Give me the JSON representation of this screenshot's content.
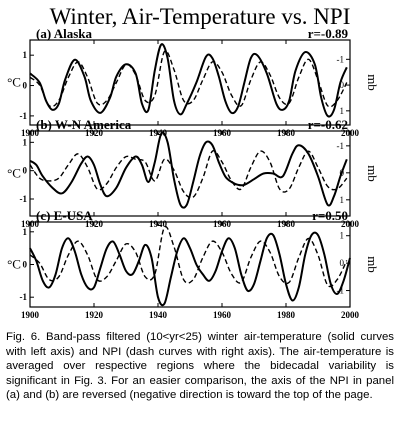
{
  "figure": {
    "title": "Winter, Air-Temperature vs. NPI",
    "caption": "Fig. 6. Band-pass filtered (10<yr<25) winter air-temperature (solid curves with left axis) and NPI (dash curves with right axis). The air-temperature is averaged over respective regions where the bidecadal variability is significant in Fig. 3. For an easier comparison, the axis of the NPI in panel (a) and (b) are reversed (negative direction is toward the top of the page."
  },
  "chart_data": [
    {
      "type": "line",
      "panel_label": "(a) Alaska",
      "r_label": "r=-0.89",
      "ylabel_left": "°C",
      "ylabel_right": "mb",
      "xlim": [
        1900,
        2000
      ],
      "ylim_left": [
        -1.3,
        1.5
      ],
      "ylim_right": [
        -1.75,
        1.55
      ],
      "right_axis_reversed": true,
      "x_ticks": [
        1900,
        1920,
        1940,
        1960,
        1980,
        2000
      ],
      "left_ticks": [
        {
          "value": 1,
          "label": "1"
        },
        {
          "value": 0,
          "label": "0"
        },
        {
          "value": -1,
          "label": "-1"
        }
      ],
      "right_ticks": [
        {
          "value": -1,
          "label": "-1"
        },
        {
          "value": 0,
          "label": "0"
        },
        {
          "value": 1,
          "label": "1"
        }
      ],
      "series": [
        {
          "role": "air-temperature",
          "style": "solid",
          "axis": "left",
          "x": [
            1900,
            1903,
            1905,
            1907,
            1909,
            1911,
            1914,
            1917,
            1919,
            1922,
            1925,
            1927,
            1930,
            1933,
            1935,
            1937,
            1939,
            1941,
            1943,
            1945,
            1947,
            1949,
            1952,
            1955,
            1957,
            1959,
            1961,
            1963,
            1965,
            1967,
            1969,
            1971,
            1974,
            1977,
            1979,
            1981,
            1983,
            1986,
            1989,
            1991,
            1993,
            1995,
            1997,
            1999
          ],
          "values": [
            0.4,
            0.1,
            -0.5,
            -0.8,
            -0.6,
            0.2,
            0.85,
            0.3,
            -0.5,
            -0.9,
            -0.4,
            0.3,
            0.7,
            0.4,
            -0.6,
            -0.8,
            0.5,
            1.35,
            0.9,
            -0.5,
            -0.95,
            -0.6,
            0.1,
            0.95,
            0.9,
            0.3,
            -0.5,
            -0.9,
            -0.7,
            0.1,
            0.9,
            1.0,
            0.4,
            -0.6,
            -0.8,
            -0.5,
            0.5,
            1.1,
            0.7,
            -0.4,
            -1.0,
            -0.8,
            0.1,
            0.6
          ]
        },
        {
          "role": "NPI",
          "style": "dashed",
          "axis": "right",
          "x": [
            1900,
            1903,
            1906,
            1909,
            1912,
            1915,
            1918,
            1921,
            1924,
            1927,
            1930,
            1933,
            1936,
            1939,
            1942,
            1945,
            1948,
            1951,
            1954,
            1957,
            1960,
            1963,
            1966,
            1969,
            1972,
            1975,
            1978,
            1981,
            1984,
            1987,
            1990,
            1993,
            1996,
            1999
          ],
          "values": [
            -0.3,
            0.0,
            0.8,
            0.6,
            -0.3,
            -0.9,
            -0.3,
            0.7,
            0.6,
            -0.1,
            -0.8,
            -0.4,
            0.6,
            0.4,
            -1.3,
            -0.6,
            0.6,
            0.6,
            -0.2,
            -0.9,
            -0.5,
            0.4,
            0.8,
            -0.2,
            -0.9,
            -0.4,
            0.5,
            0.7,
            -0.3,
            -1.0,
            -0.2,
            0.8,
            0.6,
            -0.1
          ]
        }
      ]
    },
    {
      "type": "line",
      "panel_label": "(b) W-N America",
      "r_label": "r=-0.62",
      "ylabel_left": "°C",
      "ylabel_right": "mb",
      "xlim": [
        1900,
        2000
      ],
      "ylim_left": [
        -1.6,
        1.4
      ],
      "ylim_right": [
        -1.55,
        1.6
      ],
      "right_axis_reversed": true,
      "x_ticks": [
        1900,
        1920,
        1940,
        1960,
        1980,
        2000
      ],
      "left_ticks": [
        {
          "value": 1,
          "label": "1"
        },
        {
          "value": 0,
          "label": "0"
        },
        {
          "value": -1,
          "label": "-1"
        }
      ],
      "right_ticks": [
        {
          "value": -1,
          "label": "-1"
        },
        {
          "value": 0,
          "label": "0"
        },
        {
          "value": 1,
          "label": "1"
        }
      ],
      "series": [
        {
          "role": "air-temperature",
          "style": "solid",
          "axis": "left",
          "x": [
            1900,
            1902,
            1904,
            1907,
            1910,
            1913,
            1916,
            1918,
            1920,
            1922,
            1924,
            1927,
            1930,
            1933,
            1935,
            1937,
            1939,
            1941,
            1943,
            1945,
            1947,
            1949,
            1951,
            1953,
            1955,
            1957,
            1959,
            1961,
            1963,
            1965,
            1967,
            1970,
            1973,
            1976,
            1979,
            1982,
            1984,
            1987,
            1990,
            1993,
            1995,
            1997,
            1999
          ],
          "values": [
            0.35,
            0.2,
            -0.2,
            -0.6,
            -0.8,
            -0.4,
            0.25,
            0.5,
            0.2,
            -0.5,
            -0.9,
            -0.6,
            0.1,
            0.5,
            0.2,
            -0.4,
            0.3,
            1.3,
            1.0,
            -0.3,
            -1.2,
            -1.2,
            -0.4,
            0.5,
            1.0,
            0.9,
            0.3,
            -0.2,
            -0.4,
            -0.5,
            -0.5,
            -0.3,
            -0.1,
            -0.1,
            -0.2,
            0.6,
            0.9,
            0.6,
            -0.2,
            -1.2,
            -0.9,
            -0.2,
            0.4
          ]
        },
        {
          "role": "NPI",
          "style": "dashed",
          "axis": "right",
          "x": [
            1900,
            1903,
            1906,
            1909,
            1912,
            1915,
            1918,
            1921,
            1924,
            1927,
            1930,
            1933,
            1936,
            1939,
            1942,
            1945,
            1948,
            1951,
            1954,
            1957,
            1960,
            1963,
            1966,
            1969,
            1972,
            1975,
            1978,
            1981,
            1984,
            1987,
            1990,
            1993,
            1996,
            1999
          ],
          "values": [
            -0.3,
            0.2,
            0.3,
            0.2,
            -0.3,
            -0.7,
            -0.2,
            0.6,
            0.4,
            -0.2,
            -0.6,
            -0.5,
            -0.4,
            0.3,
            -0.5,
            -0.1,
            0.7,
            0.9,
            0.2,
            -0.8,
            -0.4,
            0.3,
            0.6,
            -0.2,
            -0.8,
            -0.4,
            0.6,
            0.6,
            -0.2,
            -0.8,
            -0.2,
            0.5,
            0.6,
            0.2
          ]
        }
      ]
    },
    {
      "type": "line",
      "panel_label": "(c) E-USA",
      "r_label": "r=0.50",
      "ylabel_left": "°C",
      "ylabel_right": "mb",
      "xlim": [
        1900,
        2000
      ],
      "ylim_left": [
        -1.3,
        1.3
      ],
      "ylim_right": [
        -1.6,
        1.5
      ],
      "right_axis_reversed": false,
      "x_ticks": [
        1900,
        1920,
        1940,
        1960,
        1980,
        2000
      ],
      "left_ticks": [
        {
          "value": 1,
          "label": "1"
        },
        {
          "value": 0,
          "label": "0"
        },
        {
          "value": -1,
          "label": "-1"
        }
      ],
      "right_ticks": [
        {
          "value": 1,
          "label": "1"
        },
        {
          "value": 0,
          "label": "0"
        },
        {
          "value": -1,
          "label": "-1"
        }
      ],
      "series": [
        {
          "role": "air-temperature",
          "style": "solid",
          "axis": "left",
          "x": [
            1900,
            1902,
            1904,
            1906,
            1908,
            1910,
            1912,
            1914,
            1916,
            1918,
            1920,
            1922,
            1924,
            1926,
            1928,
            1930,
            1932,
            1934,
            1936,
            1938,
            1940,
            1942,
            1944,
            1946,
            1948,
            1950,
            1952,
            1954,
            1956,
            1958,
            1960,
            1962,
            1964,
            1966,
            1968,
            1970,
            1972,
            1974,
            1976,
            1978,
            1980,
            1982,
            1984,
            1986,
            1988,
            1990,
            1992,
            1994,
            1996,
            1998,
            2000
          ],
          "values": [
            0.5,
            0.1,
            -0.5,
            -0.7,
            -0.3,
            0.5,
            0.8,
            0.4,
            -0.3,
            -0.7,
            -0.7,
            -0.1,
            0.5,
            0.7,
            0.3,
            -0.2,
            -0.3,
            0.1,
            0.6,
            0.2,
            -1.0,
            -1.2,
            -0.4,
            0.4,
            0.8,
            0.5,
            0.0,
            -0.3,
            -0.5,
            -0.2,
            0.4,
            0.8,
            0.5,
            -0.3,
            -0.8,
            -0.6,
            0.1,
            0.8,
            0.9,
            0.3,
            -0.6,
            -1.1,
            -0.7,
            0.3,
            0.9,
            0.9,
            0.3,
            -0.6,
            -0.9,
            -0.5,
            0.2
          ]
        },
        {
          "role": "NPI",
          "style": "dashed",
          "axis": "right",
          "x": [
            1900,
            1903,
            1906,
            1909,
            1912,
            1915,
            1918,
            1921,
            1924,
            1927,
            1930,
            1933,
            1936,
            1939,
            1942,
            1945,
            1948,
            1951,
            1954,
            1957,
            1960,
            1963,
            1966,
            1969,
            1972,
            1975,
            1978,
            1981,
            1984,
            1987,
            1990,
            1993,
            1996,
            1999
          ],
          "values": [
            0.3,
            0.0,
            -0.6,
            -0.5,
            0.3,
            0.8,
            0.3,
            -0.6,
            -0.5,
            0.1,
            0.7,
            0.4,
            -0.5,
            -0.4,
            1.3,
            0.6,
            -0.6,
            -0.6,
            0.2,
            0.8,
            0.4,
            -0.4,
            -0.7,
            0.2,
            0.8,
            0.4,
            -0.5,
            -0.7,
            0.2,
            0.9,
            0.3,
            -0.8,
            -0.6,
            0.1
          ]
        }
      ]
    }
  ]
}
